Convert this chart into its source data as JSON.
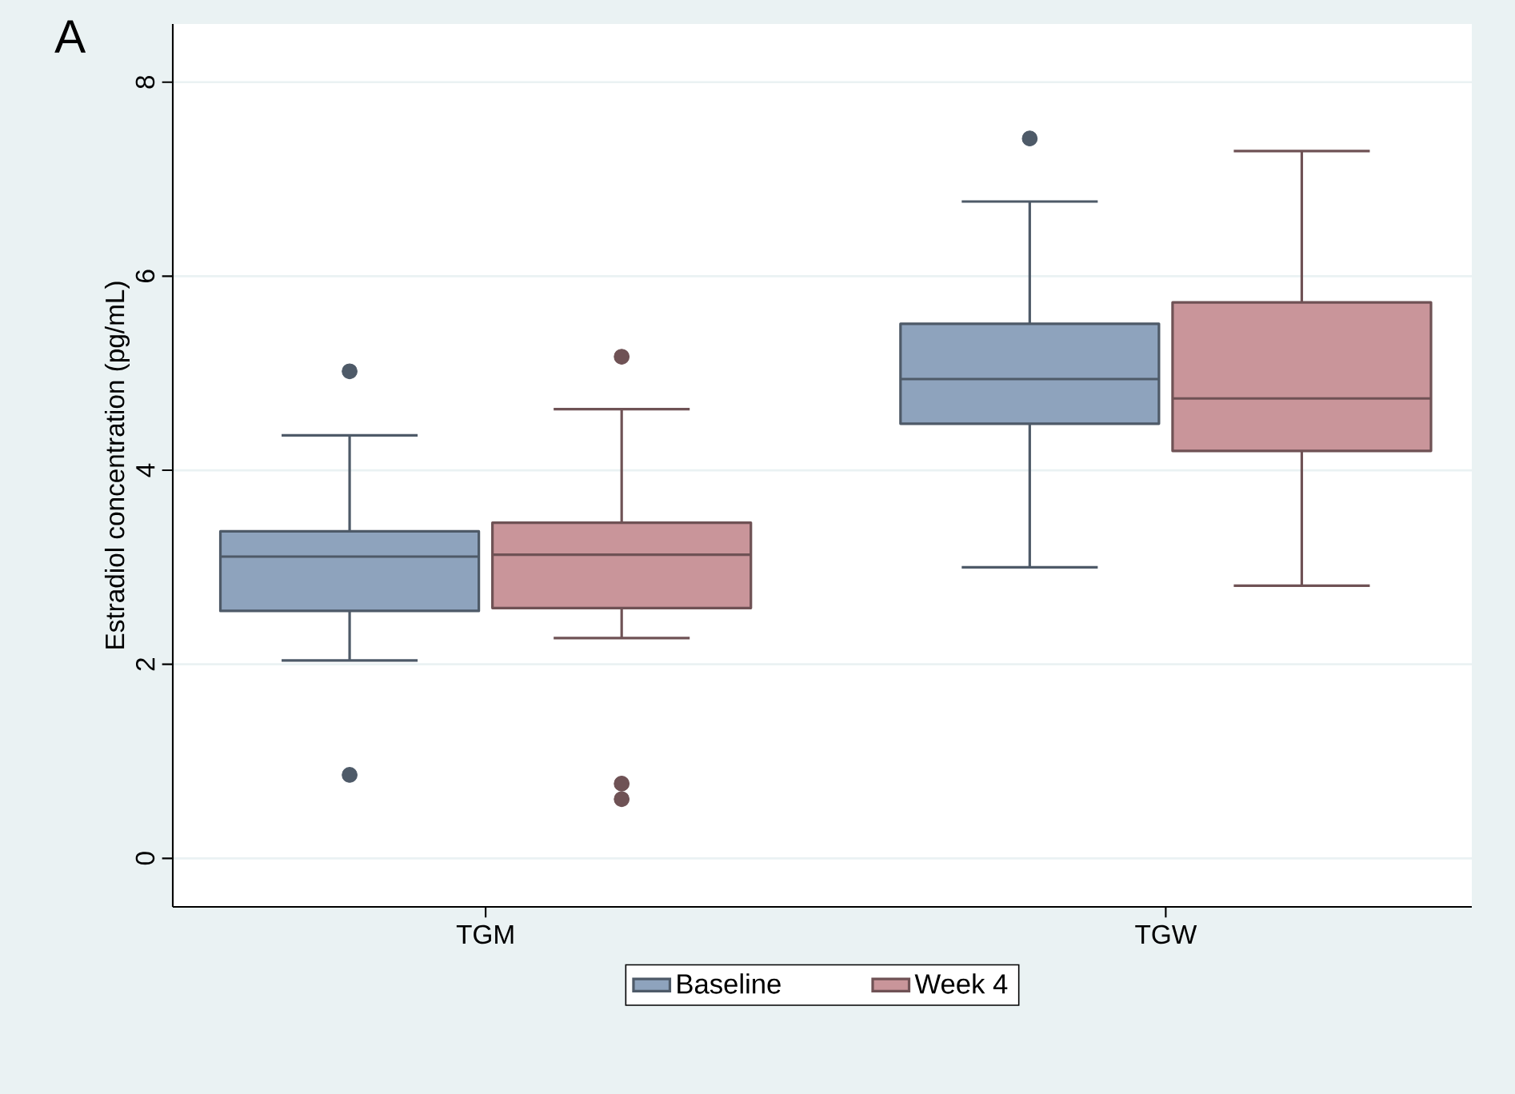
{
  "chart_data": {
    "type": "box",
    "title": "A",
    "ylabel": "Estradiol concentration (pg/mL)",
    "categories": [
      "TGM",
      "TGW"
    ],
    "series": [
      {
        "name": "Baseline",
        "color": "#8ea3bd",
        "boxes": [
          {
            "low": 2.04,
            "q1": 2.55,
            "median": 3.11,
            "q3": 3.37,
            "high": 4.36,
            "outliers": [
              5.02,
              0.86
            ]
          },
          {
            "low": 3.0,
            "q1": 4.48,
            "median": 4.94,
            "q3": 5.51,
            "high": 6.77,
            "outliers": [
              7.42
            ]
          }
        ]
      },
      {
        "name": "Week 4",
        "color": "#c9959a",
        "boxes": [
          {
            "low": 2.27,
            "q1": 2.58,
            "median": 3.13,
            "q3": 3.46,
            "high": 4.63,
            "outliers": [
              5.17,
              0.77,
              0.61
            ]
          },
          {
            "low": 2.81,
            "q1": 4.2,
            "median": 4.74,
            "q3": 5.73,
            "high": 7.29
          }
        ]
      }
    ],
    "ylim": [
      -0.5,
      8.6
    ],
    "yticks": [
      0,
      2,
      4,
      6,
      8
    ],
    "grid": "y",
    "legend": "bottom"
  }
}
